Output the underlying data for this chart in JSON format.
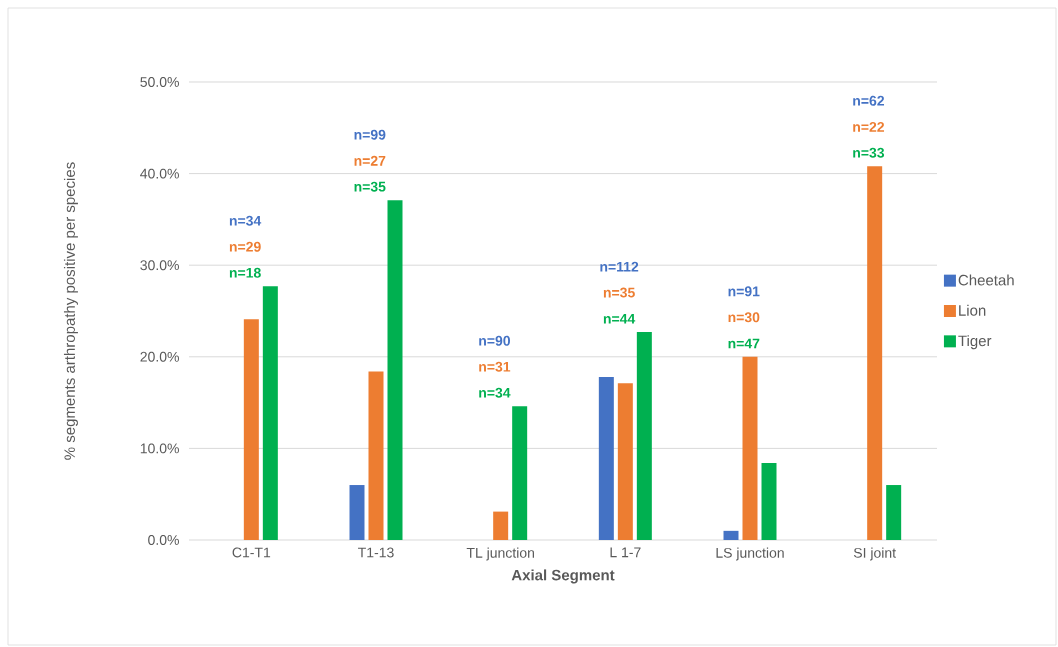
{
  "chart_data": {
    "type": "bar",
    "xlabel": "Axial Segment",
    "ylabel": "% segments arthropathy positive per species",
    "categories": [
      "C1-T1",
      "T1-13",
      "TL junction",
      "L 1-7",
      "LS junction",
      "SI joint"
    ],
    "series": [
      {
        "name": "Cheetah",
        "color": "#4472c4",
        "values": [
          0,
          6.0,
          0,
          17.8,
          1.0,
          0
        ]
      },
      {
        "name": "Lion",
        "color": "#ed7d31",
        "values": [
          24.1,
          18.4,
          3.1,
          17.1,
          20.0,
          40.8
        ]
      },
      {
        "name": "Tiger",
        "color": "#00b050",
        "values": [
          27.7,
          37.1,
          14.6,
          22.7,
          8.4,
          6.0
        ]
      }
    ],
    "ylim": [
      0,
      50
    ],
    "yticks": [
      {
        "value": 0,
        "label": "0.0%"
      },
      {
        "value": 10,
        "label": "10.0%"
      },
      {
        "value": 20,
        "label": "20.0%"
      },
      {
        "value": 30,
        "label": "30.0%"
      },
      {
        "value": 40,
        "label": "40.0%"
      },
      {
        "value": 50,
        "label": "50.0%"
      }
    ],
    "grid": "y",
    "legend": "right",
    "annotations": [
      "n=34",
      "n=29",
      "n=18",
      "n=99",
      "n=27",
      "n=35",
      "n=90",
      "n=31",
      "n=34",
      "n=112",
      "n=35",
      "n=44",
      "n=91",
      "n=30",
      "n=47",
      "n=62",
      "n=22",
      "n=33"
    ]
  }
}
